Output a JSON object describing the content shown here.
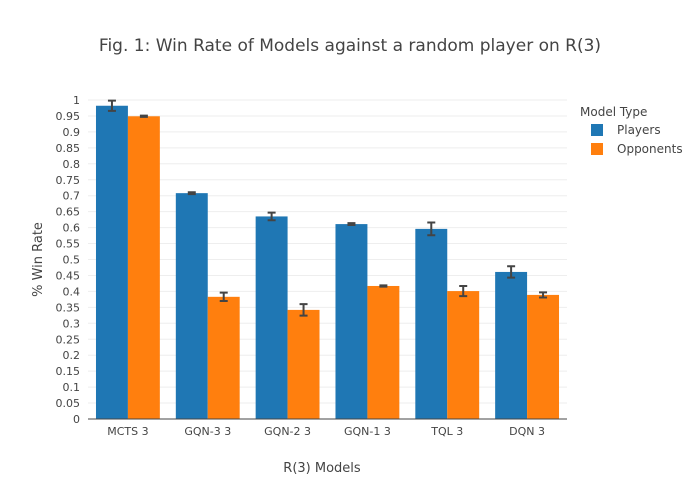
{
  "chart_data": {
    "type": "bar",
    "title": "Fig. 1: Win Rate of Models against a random player on R(3)",
    "xlabel": "R(3) Models",
    "ylabel": "% Win Rate",
    "ylim": [
      0,
      1
    ],
    "yticks": [
      0,
      0.05,
      0.1,
      0.15,
      0.2,
      0.25,
      0.3,
      0.35,
      0.4,
      0.45,
      0.5,
      0.55,
      0.6,
      0.65,
      0.7,
      0.75,
      0.8,
      0.85,
      0.9,
      0.95,
      1
    ],
    "ytick_labels": [
      "0",
      "0.05",
      "0.1",
      "0.15",
      "0.2",
      "0.25",
      "0.3",
      "0.35",
      "0.4",
      "0.45",
      "0.5",
      "0.55",
      "0.6",
      "0.65",
      "0.7",
      "0.75",
      "0.8",
      "0.85",
      "0.9",
      "0.95",
      "1"
    ],
    "grid": true,
    "legend": {
      "title": "Model Type",
      "position": "top-right"
    },
    "categories": [
      "MCTS 3",
      "GQN-3 3",
      "GQN-2 3",
      "GQN-1 3",
      "TQL 3",
      "DQN 3"
    ],
    "series": [
      {
        "name": "Players",
        "color": "#1f77b4",
        "values": [
          0.982,
          0.708,
          0.635,
          0.611,
          0.596,
          0.461
        ],
        "errors": [
          0.016,
          0.003,
          0.012,
          0.003,
          0.02,
          0.018
        ]
      },
      {
        "name": "Opponents",
        "color": "#ff7f0e",
        "values": [
          0.949,
          0.383,
          0.342,
          0.417,
          0.401,
          0.389
        ],
        "errors": [
          0.002,
          0.013,
          0.018,
          0.002,
          0.016,
          0.008
        ]
      }
    ]
  }
}
